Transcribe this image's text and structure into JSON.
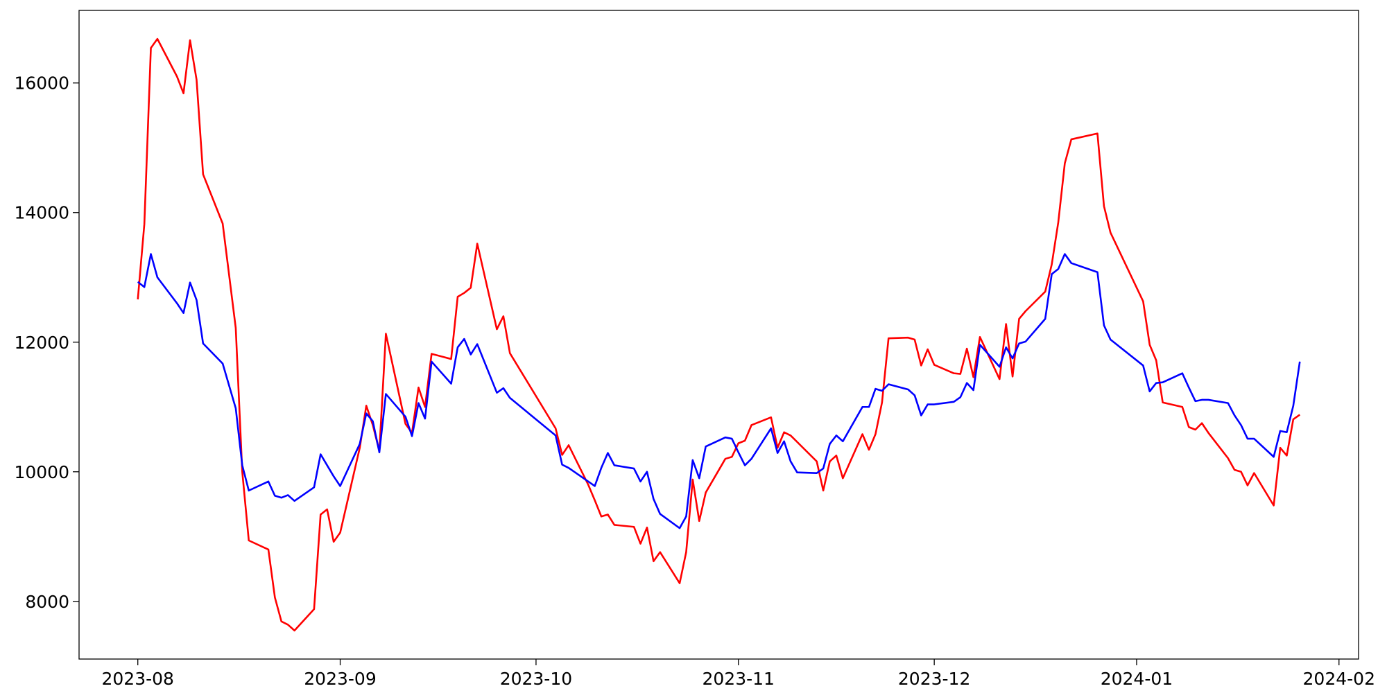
{
  "chart_data": {
    "type": "line",
    "x": [
      "2023-08-01",
      "2023-08-02",
      "2023-08-03",
      "2023-08-04",
      "2023-08-07",
      "2023-08-08",
      "2023-08-09",
      "2023-08-10",
      "2023-08-11",
      "2023-08-14",
      "2023-08-16",
      "2023-08-17",
      "2023-08-18",
      "2023-08-21",
      "2023-08-22",
      "2023-08-23",
      "2023-08-24",
      "2023-08-25",
      "2023-08-28",
      "2023-08-29",
      "2023-08-30",
      "2023-08-31",
      "2023-09-01",
      "2023-09-04",
      "2023-09-05",
      "2023-09-06",
      "2023-09-07",
      "2023-09-08",
      "2023-09-11",
      "2023-09-12",
      "2023-09-13",
      "2023-09-14",
      "2023-09-15",
      "2023-09-18",
      "2023-09-19",
      "2023-09-20",
      "2023-09-21",
      "2023-09-22",
      "2023-09-25",
      "2023-09-26",
      "2023-09-27",
      "2023-10-04",
      "2023-10-05",
      "2023-10-06",
      "2023-10-09",
      "2023-10-10",
      "2023-10-11",
      "2023-10-12",
      "2023-10-13",
      "2023-10-16",
      "2023-10-17",
      "2023-10-18",
      "2023-10-19",
      "2023-10-20",
      "2023-10-23",
      "2023-10-24",
      "2023-10-25",
      "2023-10-26",
      "2023-10-27",
      "2023-10-30",
      "2023-10-31",
      "2023-11-01",
      "2023-11-02",
      "2023-11-03",
      "2023-11-06",
      "2023-11-07",
      "2023-11-08",
      "2023-11-09",
      "2023-11-10",
      "2023-11-13",
      "2023-11-14",
      "2023-11-15",
      "2023-11-16",
      "2023-11-17",
      "2023-11-20",
      "2023-11-21",
      "2023-11-22",
      "2023-11-23",
      "2023-11-24",
      "2023-11-27",
      "2023-11-28",
      "2023-11-29",
      "2023-11-30",
      "2023-12-01",
      "2023-12-04",
      "2023-12-05",
      "2023-12-06",
      "2023-12-07",
      "2023-12-08",
      "2023-12-11",
      "2023-12-12",
      "2023-12-13",
      "2023-12-14",
      "2023-12-15",
      "2023-12-18",
      "2023-12-19",
      "2023-12-20",
      "2023-12-21",
      "2023-12-22",
      "2023-12-26",
      "2023-12-27",
      "2023-12-28",
      "2024-01-02",
      "2024-01-03",
      "2024-01-04",
      "2024-01-05",
      "2024-01-08",
      "2024-01-09",
      "2024-01-10",
      "2024-01-11",
      "2024-01-12",
      "2024-01-15",
      "2024-01-16",
      "2024-01-17",
      "2024-01-18",
      "2024-01-19",
      "2024-01-22",
      "2024-01-23",
      "2024-01-24",
      "2024-01-25",
      "2024-01-26"
    ],
    "series": [
      {
        "color": "#ff0000",
        "values": [
          12660,
          13820,
          16540,
          16680,
          16100,
          15840,
          16660,
          16050,
          14590,
          13830,
          12220,
          10000,
          8940,
          8800,
          8060,
          7690,
          7640,
          7550,
          7880,
          9340,
          9420,
          8920,
          9060,
          10370,
          11020,
          10720,
          10320,
          12130,
          10740,
          10600,
          11300,
          11000,
          11820,
          11740,
          12700,
          12760,
          12840,
          13520,
          12200,
          12400,
          11830,
          10670,
          10260,
          10410,
          9800,
          9560,
          9310,
          9340,
          9180,
          9150,
          8890,
          9140,
          8620,
          8760,
          8280,
          8760,
          9880,
          9240,
          9680,
          10200,
          10230,
          10440,
          10480,
          10720,
          10840,
          10370,
          10610,
          10560,
          10460,
          10160,
          9710,
          10160,
          10250,
          9900,
          10580,
          10340,
          10580,
          11070,
          12060,
          12070,
          12040,
          11640,
          11890,
          11650,
          11520,
          11510,
          11900,
          11460,
          12080,
          11430,
          12280,
          11470,
          12360,
          12480,
          12780,
          13200,
          13850,
          14760,
          15130,
          15220,
          14100,
          13690,
          12630,
          11960,
          11720,
          11070,
          11000,
          10690,
          10650,
          10750,
          10600,
          10210,
          10030,
          10000,
          9790,
          9980,
          9480,
          10370,
          10250,
          10810,
          10880
        ]
      },
      {
        "color": "#0000ff",
        "values": [
          12930,
          12850,
          13360,
          13000,
          12600,
          12450,
          12920,
          12650,
          11980,
          11670,
          10980,
          10100,
          9710,
          9850,
          9630,
          9600,
          9640,
          9550,
          9760,
          10270,
          10100,
          9930,
          9780,
          10430,
          10900,
          10780,
          10300,
          11200,
          10850,
          10550,
          11060,
          10820,
          11700,
          11360,
          11920,
          12050,
          11810,
          11970,
          11220,
          11290,
          11140,
          10560,
          10110,
          10060,
          9850,
          9780,
          10060,
          10290,
          10100,
          10050,
          9850,
          10000,
          9580,
          9350,
          9130,
          9310,
          10180,
          9900,
          10390,
          10530,
          10510,
          10300,
          10100,
          10200,
          10670,
          10290,
          10470,
          10160,
          9990,
          9980,
          10050,
          10430,
          10560,
          10470,
          11000,
          11000,
          11280,
          11250,
          11350,
          11270,
          11180,
          10870,
          11040,
          11040,
          11080,
          11150,
          11370,
          11260,
          11960,
          11620,
          11920,
          11750,
          11980,
          12010,
          12360,
          13050,
          13130,
          13360,
          13220,
          13080,
          12260,
          12040,
          11640,
          11240,
          11370,
          11380,
          11520,
          11300,
          11090,
          11110,
          11110,
          11060,
          10870,
          10720,
          10510,
          10510,
          10230,
          10630,
          10610,
          11020,
          11700
        ]
      }
    ],
    "xlim": [
      "2023-07-23",
      "2024-02-04"
    ],
    "xticks": [
      {
        "value": "2023-08-01",
        "label": "2023-08"
      },
      {
        "value": "2023-09-01",
        "label": "2023-09"
      },
      {
        "value": "2023-10-01",
        "label": "2023-10"
      },
      {
        "value": "2023-11-01",
        "label": "2023-11"
      },
      {
        "value": "2023-12-01",
        "label": "2023-12"
      },
      {
        "value": "2024-01-01",
        "label": "2024-01"
      },
      {
        "value": "2024-02-01",
        "label": "2024-02"
      }
    ],
    "ylim": [
      7110,
      17120
    ],
    "yticks": [
      8000,
      10000,
      12000,
      14000,
      16000
    ],
    "grid": false
  }
}
